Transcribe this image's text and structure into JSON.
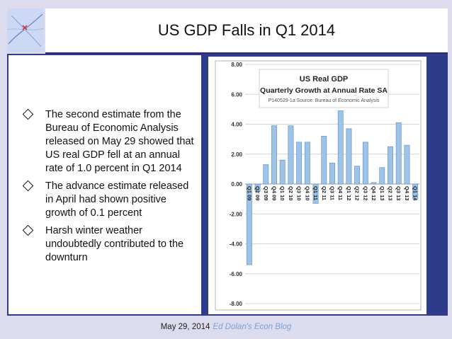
{
  "slide": {
    "title": "US GDP Falls in Q1 2014",
    "bullets": [
      "The second estimate from the Bureau of Economic Analysis released on May 29 showed that US real GDP fell at an annual rate of 1.0 percent in Q1 2014",
      "The advance estimate released in April had shown positive growth of 0.1 percent",
      "Harsh winter weather undoubtedly contributed to the downturn"
    ],
    "footer": {
      "date": "May 29, 2014",
      "blog": "Ed Dolan's Econ Blog"
    }
  },
  "colors": {
    "bar": "#9dc3e6",
    "bar_edge": "#5b8cc5",
    "stripe": "#2e3a8a",
    "footer_link": "#7aa2d8"
  },
  "chart_data": {
    "type": "bar",
    "title": "US Real GDP",
    "subtitle": "Quarterly Growth at Annual Rate SA",
    "source": "P140529-1a Source: Bureau of Economic Analysis",
    "xlabel": "",
    "ylabel": "",
    "ylim": [
      -8,
      8
    ],
    "yticks": [
      "8.00",
      "6.00",
      "4.00",
      "2.00",
      "0.00",
      "-2.00",
      "-4.00",
      "-6.00",
      "-8.00"
    ],
    "grid": true,
    "categories": [
      "Q1 09",
      "Q2 09",
      "Q3 09",
      "Q4 09",
      "Q1 10",
      "Q2 10",
      "Q3 10",
      "Q4 10",
      "Q1 11",
      "Q2 11",
      "Q3 11",
      "Q4 11",
      "Q1 12",
      "Q2 12",
      "Q3 12",
      "Q4 12",
      "Q1 13",
      "Q2 13",
      "Q3 13",
      "Q4 13",
      "Q1 14"
    ],
    "values": [
      -5.4,
      -0.5,
      1.3,
      3.9,
      1.6,
      3.9,
      2.8,
      2.8,
      -1.3,
      3.2,
      1.4,
      4.9,
      3.7,
      1.2,
      2.8,
      0.1,
      1.1,
      2.5,
      4.1,
      2.6,
      -1.0
    ]
  }
}
